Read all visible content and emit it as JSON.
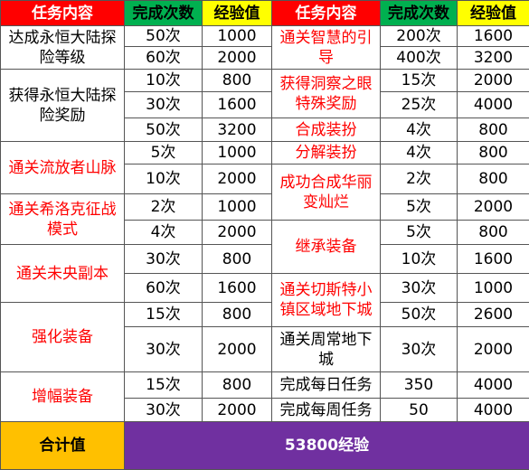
{
  "table": {
    "header": [
      "任务内容",
      "完成次数",
      "经验值",
      "任务内容",
      "完成次数",
      "经验值"
    ],
    "left": [
      {
        "task": "达成永恒大陆探险等级",
        "color": "#000000",
        "rows": [
          [
            "50次",
            1000
          ],
          [
            "60次",
            2000
          ]
        ]
      },
      {
        "task": "获得永恒大陆探险奖励",
        "color": "#000000",
        "rows": [
          [
            "10次",
            800
          ],
          [
            "30次",
            1600
          ],
          [
            "50次",
            3200
          ]
        ]
      },
      {
        "task": "通关流放者山脉",
        "color": "#ff0000",
        "rows": [
          [
            "5次",
            1000
          ],
          [
            "10次",
            2000
          ]
        ]
      },
      {
        "task": "通关希洛克征战模式",
        "color": "#ff0000",
        "rows": [
          [
            "2次",
            1000
          ],
          [
            "4次",
            2000
          ]
        ]
      },
      {
        "task": "通关未央副本",
        "color": "#ff0000",
        "rows": [
          [
            "30次",
            800
          ],
          [
            "60次",
            1600
          ]
        ]
      },
      {
        "task": "强化装备",
        "color": "#ff0000",
        "rows": [
          [
            "15次",
            800
          ],
          [
            "30次",
            2000
          ]
        ]
      },
      {
        "task": "增幅装备",
        "color": "#ff0000",
        "rows": [
          [
            "15次",
            800
          ],
          [
            "30次",
            2000
          ]
        ]
      }
    ],
    "right": [
      {
        "task": "通关智慧的引导",
        "color": "#ff0000",
        "rows": [
          [
            "200次",
            1600
          ],
          [
            "400次",
            3200
          ]
        ]
      },
      {
        "task": "获得洞察之眼特殊奖励",
        "color": "#ff0000",
        "rows": [
          [
            "15次",
            2000
          ],
          [
            "25次",
            4000
          ]
        ]
      },
      {
        "task": "合成装扮",
        "color": "#ff0000",
        "rows": [
          [
            "4次",
            800
          ]
        ]
      },
      {
        "task": "分解装扮",
        "color": "#ff0000",
        "rows": [
          [
            "4次",
            800
          ]
        ]
      },
      {
        "task": "成功合成华丽变灿烂",
        "color": "#ff0000",
        "rows": [
          [
            "2次",
            800
          ],
          [
            "5次",
            2000
          ]
        ]
      },
      {
        "task": "继承装备",
        "color": "#ff0000",
        "rows": [
          [
            "5次",
            800
          ],
          [
            "10次",
            1600
          ]
        ]
      },
      {
        "task": "通关切斯特小镇区域地下城",
        "color": "#ff0000",
        "rows": [
          [
            "30次",
            1000
          ],
          [
            "50次",
            2600
          ]
        ]
      },
      {
        "task": "通关周常地下城",
        "color": "#000000",
        "rows": [
          [
            "30次",
            2000
          ]
        ]
      },
      {
        "task": "完成每日任务",
        "color": "#000000",
        "rows": [
          [
            350,
            4000
          ]
        ]
      },
      {
        "task": "完成每周任务",
        "color": "#000000",
        "rows": [
          [
            50,
            4000
          ]
        ]
      }
    ],
    "footer": {
      "label": "合计值",
      "total": "53800经验"
    }
  }
}
